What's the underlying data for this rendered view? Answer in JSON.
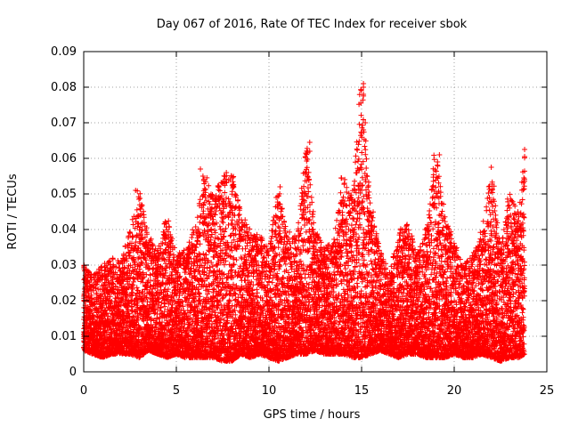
{
  "chart_data": {
    "type": "scatter",
    "title": "Day 067 of 2016, Rate Of TEC Index for receiver sbok",
    "xlabel": "GPS time / hours",
    "ylabel": "ROTI / TECUs",
    "xlim": [
      0,
      25
    ],
    "ylim": [
      0,
      0.09
    ],
    "x_ticks": [
      "0",
      "5",
      "10",
      "15",
      "20",
      "25"
    ],
    "y_ticks": [
      "0",
      "0.01",
      "0.02",
      "0.03",
      "0.04",
      "0.05",
      "0.06",
      "0.07",
      "0.08",
      "0.09"
    ],
    "grid": true,
    "marker": "+",
    "marker_color": "#ff0000",
    "envelope": {
      "note": "dense scatter summarized by sampled upper envelope per time",
      "x": [
        0.0,
        0.5,
        1.0,
        1.5,
        2.0,
        2.5,
        3.0,
        3.5,
        4.0,
        4.5,
        5.0,
        5.5,
        6.0,
        6.5,
        7.0,
        7.5,
        8.0,
        8.5,
        9.0,
        9.5,
        10.0,
        10.5,
        11.0,
        11.5,
        12.0,
        12.5,
        13.0,
        13.5,
        14.0,
        14.5,
        15.0,
        15.5,
        16.0,
        16.5,
        17.0,
        17.5,
        18.0,
        18.5,
        19.0,
        19.5,
        20.0,
        20.5,
        21.0,
        21.5,
        22.0,
        22.5,
        23.0,
        23.5,
        23.8
      ],
      "upper": [
        0.03,
        0.027,
        0.03,
        0.032,
        0.031,
        0.04,
        0.051,
        0.038,
        0.034,
        0.045,
        0.033,
        0.035,
        0.04,
        0.057,
        0.05,
        0.055,
        0.056,
        0.045,
        0.04,
        0.038,
        0.035,
        0.052,
        0.04,
        0.038,
        0.064,
        0.04,
        0.035,
        0.037,
        0.055,
        0.05,
        0.081,
        0.045,
        0.035,
        0.028,
        0.04,
        0.042,
        0.033,
        0.04,
        0.061,
        0.045,
        0.036,
        0.03,
        0.033,
        0.04,
        0.057,
        0.035,
        0.05,
        0.045,
        0.062
      ],
      "lower": [
        0.006,
        0.005,
        0.004,
        0.005,
        0.005,
        0.005,
        0.004,
        0.006,
        0.005,
        0.004,
        0.005,
        0.004,
        0.004,
        0.004,
        0.004,
        0.003,
        0.003,
        0.005,
        0.004,
        0.005,
        0.004,
        0.003,
        0.004,
        0.005,
        0.005,
        0.006,
        0.005,
        0.005,
        0.005,
        0.004,
        0.004,
        0.005,
        0.006,
        0.005,
        0.004,
        0.005,
        0.005,
        0.004,
        0.004,
        0.004,
        0.005,
        0.004,
        0.004,
        0.005,
        0.004,
        0.003,
        0.004,
        0.004,
        0.005
      ]
    },
    "notable_points": [
      {
        "x": 15.1,
        "y": 0.081
      },
      {
        "x": 15.1,
        "y": 0.08
      },
      {
        "x": 15.1,
        "y": 0.078
      },
      {
        "x": 15.2,
        "y": 0.07
      },
      {
        "x": 15.1,
        "y": 0.068
      },
      {
        "x": 15.0,
        "y": 0.067
      },
      {
        "x": 12.2,
        "y": 0.0645
      },
      {
        "x": 12.2,
        "y": 0.062
      },
      {
        "x": 23.8,
        "y": 0.0625
      },
      {
        "x": 23.8,
        "y": 0.0605
      },
      {
        "x": 19.2,
        "y": 0.061
      },
      {
        "x": 19.1,
        "y": 0.059
      },
      {
        "x": 22.0,
        "y": 0.0575
      },
      {
        "x": 6.3,
        "y": 0.057
      },
      {
        "x": 7.7,
        "y": 0.056
      },
      {
        "x": 13.9,
        "y": 0.0545
      },
      {
        "x": 2.8,
        "y": 0.051
      },
      {
        "x": 10.6,
        "y": 0.052
      }
    ]
  }
}
